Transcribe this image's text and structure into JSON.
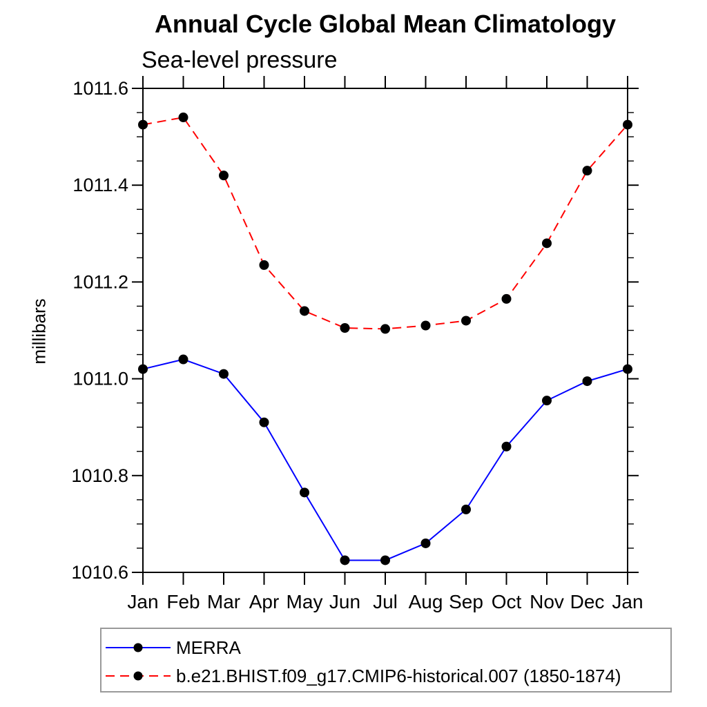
{
  "chart_data": {
    "type": "line",
    "title": "Annual Cycle Global Mean Climatology",
    "subtitle": "Sea-level pressure",
    "ylabel": "millibars",
    "categories": [
      "Jan",
      "Feb",
      "Mar",
      "Apr",
      "May",
      "Jun",
      "Jul",
      "Aug",
      "Sep",
      "Oct",
      "Nov",
      "Dec",
      "Jan"
    ],
    "ylim": [
      1010.6,
      1011.6
    ],
    "ytick_labels": [
      "1010.6",
      "1010.8",
      "1011.0",
      "1011.2",
      "1011.4",
      "1011.6"
    ],
    "ytick_values": [
      1010.6,
      1010.8,
      1011.0,
      1011.2,
      1011.4,
      1011.6
    ],
    "ytick_minor_step": 0.05,
    "grid": false,
    "legend_position": "bottom-left",
    "axis_color": "#000000",
    "series": [
      {
        "name": "MERRA",
        "color": "#0000ff",
        "line_style": "solid",
        "marker": "filled-circle",
        "marker_color": "#000000",
        "values": [
          1011.02,
          1011.04,
          1011.01,
          1010.91,
          1010.765,
          1010.625,
          1010.625,
          1010.66,
          1010.73,
          1010.86,
          1010.955,
          1010.995,
          1011.02
        ]
      },
      {
        "name": "b.e21.BHIST.f09_g17.CMIP6-historical.007 (1850-1874)",
        "color": "#ff0000",
        "line_style": "dashed",
        "marker": "filled-circle",
        "marker_color": "#000000",
        "values": [
          1011.525,
          1011.54,
          1011.42,
          1011.235,
          1011.14,
          1011.105,
          1011.103,
          1011.11,
          1011.12,
          1011.165,
          1011.28,
          1011.43,
          1011.525
        ]
      }
    ]
  }
}
